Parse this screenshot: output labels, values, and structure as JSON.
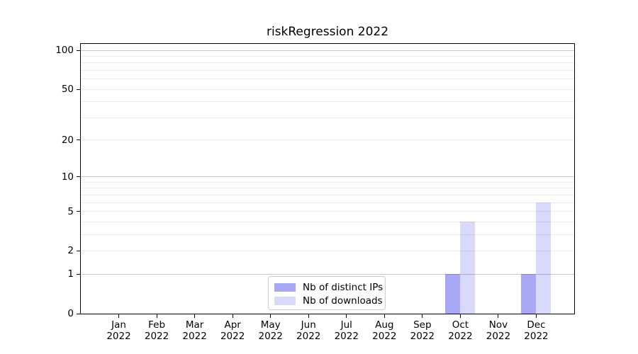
{
  "chart_data": {
    "type": "bar",
    "title": "riskRegression 2022",
    "categories": [
      "Jan",
      "Feb",
      "Mar",
      "Apr",
      "May",
      "Jun",
      "Jul",
      "Aug",
      "Sep",
      "Oct",
      "Nov",
      "Dec"
    ],
    "year_label": "2022",
    "series": [
      {
        "name": "Nb of distinct IPs",
        "color": "rgba(0,0,230,0.34)",
        "values": [
          0,
          0,
          0,
          0,
          0,
          0,
          0,
          0,
          0,
          1,
          0,
          1
        ]
      },
      {
        "name": "Nb of downloads",
        "color": "rgba(0,0,230,0.15)",
        "values": [
          0,
          0,
          0,
          0,
          0,
          0,
          0,
          0,
          0,
          4,
          0,
          6
        ]
      }
    ],
    "xlabel": "",
    "ylabel": "",
    "y_scale": "log1p",
    "ylim": [
      0,
      112
    ],
    "y_ticks": [
      0,
      1,
      2,
      5,
      10,
      20,
      50,
      100
    ],
    "gridlines_major": [
      1,
      10,
      100
    ],
    "gridlines_minor": [
      2,
      3,
      4,
      5,
      6,
      7,
      8,
      9,
      20,
      30,
      40,
      50,
      60,
      70,
      80,
      90
    ],
    "legend_position": "bottom-center",
    "colors": {
      "axis": "#000000",
      "gridline_major": "#c8c8c8",
      "gridline_minor": "#ececec",
      "legend_border": "#cccccc"
    }
  }
}
